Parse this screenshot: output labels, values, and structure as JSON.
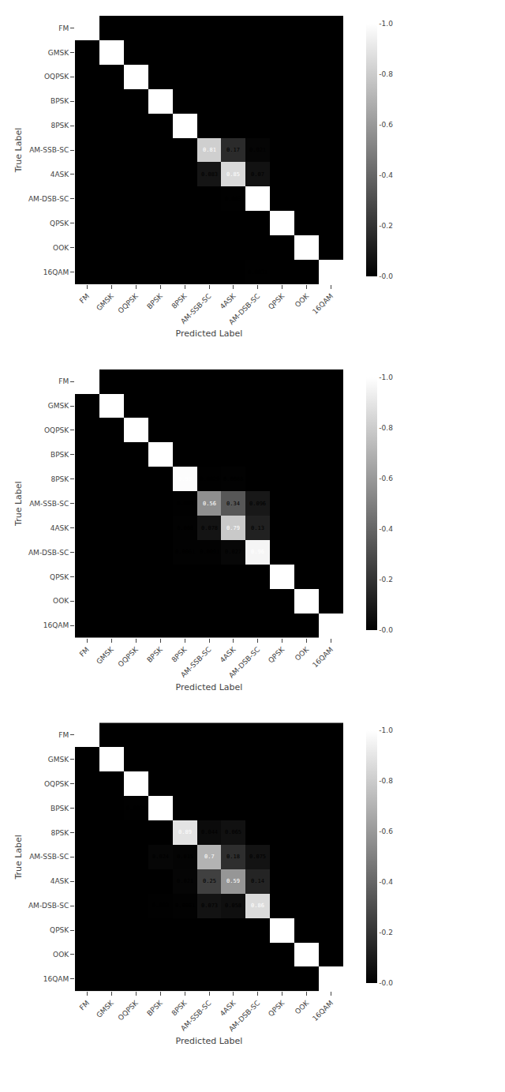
{
  "chart_data": [
    {
      "type": "heatmap",
      "categories": [
        "FM",
        "GMSK",
        "OQPSK",
        "BPSK",
        "8PSK",
        "AM-SSB-SC",
        "4ASK",
        "AM-DSB-SC",
        "QPSK",
        "OOK",
        "16QAM"
      ],
      "cells": [
        [
          1,
          0,
          0,
          0,
          0,
          0,
          0,
          0,
          0,
          0,
          0
        ],
        [
          0,
          1,
          0,
          0,
          0,
          0,
          0,
          0,
          0,
          0,
          0
        ],
        [
          0,
          0,
          1,
          0,
          0,
          0,
          0,
          0,
          0,
          0,
          0
        ],
        [
          0,
          0,
          0,
          1,
          0,
          0,
          0,
          0,
          0,
          0,
          0
        ],
        [
          0,
          0,
          0,
          0,
          1,
          0,
          0,
          0,
          0,
          0,
          0
        ],
        [
          0,
          0,
          0,
          0,
          0,
          0.81,
          0.17,
          0.021,
          0,
          0,
          0
        ],
        [
          0,
          0,
          0,
          0,
          0,
          0.083,
          0.85,
          0.07,
          0,
          0,
          0
        ],
        [
          0,
          0,
          0,
          0,
          0,
          0,
          0.003,
          1,
          0,
          0,
          0
        ],
        [
          0,
          0,
          0,
          0,
          0,
          0,
          0,
          0,
          1,
          0,
          0
        ],
        [
          0,
          0,
          0,
          0,
          0,
          0,
          0,
          0,
          0,
          1,
          0
        ],
        [
          0,
          0,
          0,
          0,
          0,
          0,
          0,
          0.0031,
          0,
          0,
          1
        ]
      ],
      "xlabel": "Predicted Label",
      "ylabel": "True Label",
      "zlim": [
        0.0,
        1.0
      ],
      "zticks": [
        {
          "value": 0.0,
          "label": "-0.0"
        },
        {
          "value": 0.2,
          "label": "-0.2"
        },
        {
          "value": 0.4,
          "label": "-0.4"
        },
        {
          "value": 0.6,
          "label": "-0.6"
        },
        {
          "value": 0.8,
          "label": "-0.8"
        },
        {
          "value": 1.0,
          "label": "-1.0"
        }
      ],
      "data_labels": true,
      "grid": false
    },
    {
      "type": "heatmap",
      "categories": [
        "FM",
        "GMSK",
        "OQPSK",
        "BPSK",
        "8PSK",
        "AM-SSB-SC",
        "4ASK",
        "AM-DSB-SC",
        "QPSK",
        "OOK",
        "16QAM"
      ],
      "cells": [
        [
          1,
          0,
          0,
          0,
          0,
          0,
          0,
          0,
          0,
          0,
          0
        ],
        [
          0,
          1,
          0,
          0,
          0,
          0,
          0,
          0,
          0,
          0,
          0
        ],
        [
          0,
          0,
          1,
          0,
          0,
          0,
          0,
          0,
          0,
          0,
          0
        ],
        [
          0,
          0,
          0,
          1,
          0,
          0,
          0,
          0,
          0,
          0,
          0
        ],
        [
          0,
          0,
          0,
          0,
          0.99,
          0.0029,
          0.0088,
          0,
          0,
          0,
          0
        ],
        [
          0,
          0,
          0,
          0,
          0.003,
          0.56,
          0.34,
          0.096,
          0,
          0,
          0
        ],
        [
          0,
          0,
          0,
          0,
          0.008,
          0.078,
          0.79,
          0.13,
          0,
          0,
          0
        ],
        [
          0,
          0,
          0,
          0,
          0.0061,
          0.0091,
          0.027,
          0.96,
          0,
          0,
          0
        ],
        [
          0,
          0,
          0,
          0,
          0,
          0,
          0,
          0,
          1,
          0,
          0
        ],
        [
          0,
          0,
          0,
          0,
          0,
          0,
          0,
          0,
          0,
          1,
          0
        ],
        [
          0,
          0,
          0,
          0,
          0,
          0,
          0,
          0,
          0,
          0,
          1
        ]
      ],
      "xlabel": "Predicted Label",
      "ylabel": "True Label",
      "zlim": [
        0.0,
        1.0
      ],
      "zticks": [
        {
          "value": 0.0,
          "label": "-0.0"
        },
        {
          "value": 0.2,
          "label": "-0.2"
        },
        {
          "value": 0.4,
          "label": "-0.4"
        },
        {
          "value": 0.6,
          "label": "-0.6"
        },
        {
          "value": 0.8,
          "label": "-0.8"
        },
        {
          "value": 1.0,
          "label": "-1.0"
        }
      ],
      "data_labels": true,
      "grid": false
    },
    {
      "type": "heatmap",
      "categories": [
        "FM",
        "GMSK",
        "OQPSK",
        "BPSK",
        "8PSK",
        "AM-SSB-SC",
        "4ASK",
        "AM-DSB-SC",
        "QPSK",
        "OOK",
        "16QAM"
      ],
      "cells": [
        [
          1,
          0,
          0,
          0,
          0,
          0,
          0,
          0,
          0,
          0,
          0
        ],
        [
          0,
          1,
          0,
          0,
          0,
          0,
          0,
          0,
          0,
          0,
          0
        ],
        [
          0,
          0,
          1,
          0,
          0,
          0,
          0,
          0,
          0,
          0,
          0
        ],
        [
          0,
          0,
          0.0029,
          1,
          0,
          0,
          0,
          0,
          0,
          0,
          0
        ],
        [
          0,
          0,
          0,
          0,
          0.89,
          0.044,
          0.065,
          0,
          0,
          0,
          0
        ],
        [
          0,
          0,
          0,
          0.024,
          0.015,
          0.7,
          0.18,
          0.075,
          0,
          0,
          0
        ],
        [
          0,
          0,
          0,
          0,
          0.021,
          0.25,
          0.59,
          0.14,
          0,
          0,
          0
        ],
        [
          0,
          0,
          0,
          0.003,
          0.0061,
          0.073,
          0.058,
          0.86,
          0,
          0,
          0
        ],
        [
          0,
          0,
          0,
          0,
          0,
          0,
          0,
          0,
          1,
          0,
          0
        ],
        [
          0,
          0,
          0,
          0,
          0,
          0,
          0,
          0,
          0,
          1,
          0
        ],
        [
          0,
          0,
          0,
          0,
          0,
          0,
          0,
          0,
          0,
          0,
          1
        ]
      ],
      "xlabel": "Predicted Label",
      "ylabel": "True Label",
      "zlim": [
        0.0,
        1.0
      ],
      "zticks": [
        {
          "value": 0.0,
          "label": "-0.0"
        },
        {
          "value": 0.2,
          "label": "-0.2"
        },
        {
          "value": 0.4,
          "label": "-0.4"
        },
        {
          "value": 0.6,
          "label": "-0.6"
        },
        {
          "value": 0.8,
          "label": "-0.8"
        },
        {
          "value": 1.0,
          "label": "-1.0"
        }
      ],
      "data_labels": true,
      "grid": false
    }
  ]
}
